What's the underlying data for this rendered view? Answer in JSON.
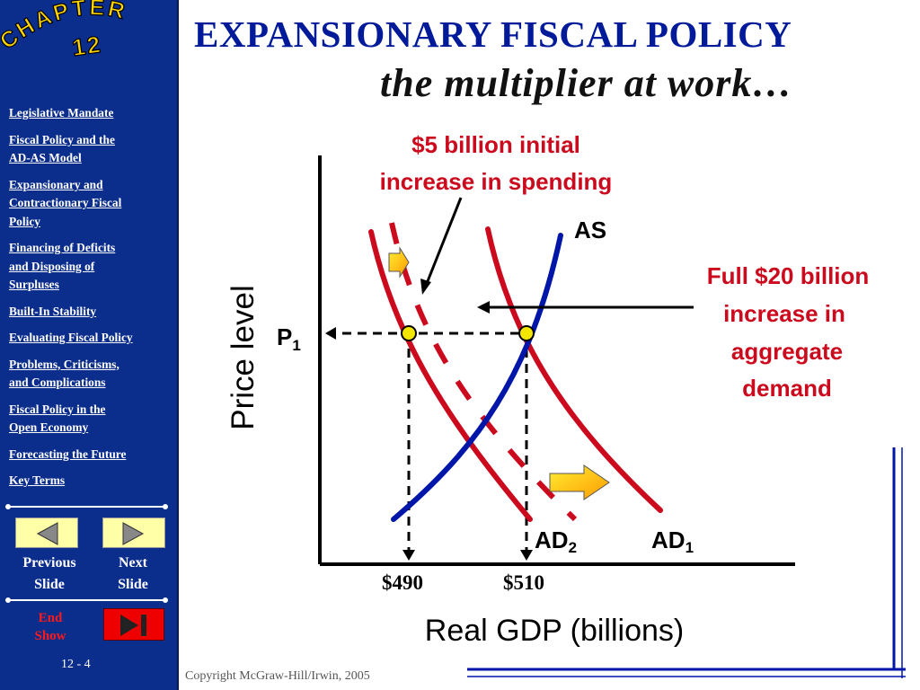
{
  "sidebar": {
    "chapter_word": "CHAPTER",
    "chapter_number": "12",
    "nav_items": [
      {
        "label_lines": [
          "Legislative Mandate"
        ]
      },
      {
        "label_lines": [
          "Fiscal Policy and the",
          "AD-AS Model"
        ]
      },
      {
        "label_lines": [
          "Expansionary and",
          "Contractionary Fiscal",
          "Policy"
        ]
      },
      {
        "label_lines": [
          "Financing of Deficits",
          "and Disposing of",
          "Surpluses"
        ]
      },
      {
        "label_lines": [
          "Built-In Stability"
        ]
      },
      {
        "label_lines": [
          "Evaluating Fiscal Policy"
        ]
      },
      {
        "label_lines": [
          "Problems, Criticisms,",
          "and Complications"
        ]
      },
      {
        "label_lines": [
          "Fiscal Policy in the",
          "Open Economy"
        ]
      },
      {
        "label_lines": [
          "Forecasting the Future"
        ]
      },
      {
        "label_lines": [
          "Key Terms"
        ]
      }
    ],
    "previous_label": [
      "Previous",
      "Slide"
    ],
    "next_label": [
      "Next",
      "Slide"
    ],
    "end_label": [
      "End",
      "Show"
    ],
    "slide_number": "12 - 4"
  },
  "slide": {
    "title": "EXPANSIONARY FISCAL POLICY",
    "subtitle": "the multiplier at work…",
    "copyright": "Copyright McGraw-Hill/Irwin, 2005"
  },
  "chart_data": {
    "type": "line",
    "ylabel": "Price level",
    "xlabel": "Real GDP (billions)",
    "x_ticks": [
      "$490",
      "$510"
    ],
    "price_label": "P",
    "price_label_sub": "1",
    "series": [
      {
        "name": "AS",
        "color": "#0016a8"
      },
      {
        "name": "AD",
        "sub": "1",
        "color": "#cc0a1e"
      },
      {
        "name": "AD",
        "sub": "2",
        "color": "#cc0a1e"
      }
    ],
    "annotations": {
      "initial": [
        "$5 billion initial",
        "increase in spending"
      ],
      "full": [
        "Full $20 billion",
        "increase in",
        "aggregate",
        "demand"
      ]
    },
    "colors": {
      "annotation": "#cc0a1e",
      "axis": "#000000",
      "point": "#f2e600"
    }
  }
}
